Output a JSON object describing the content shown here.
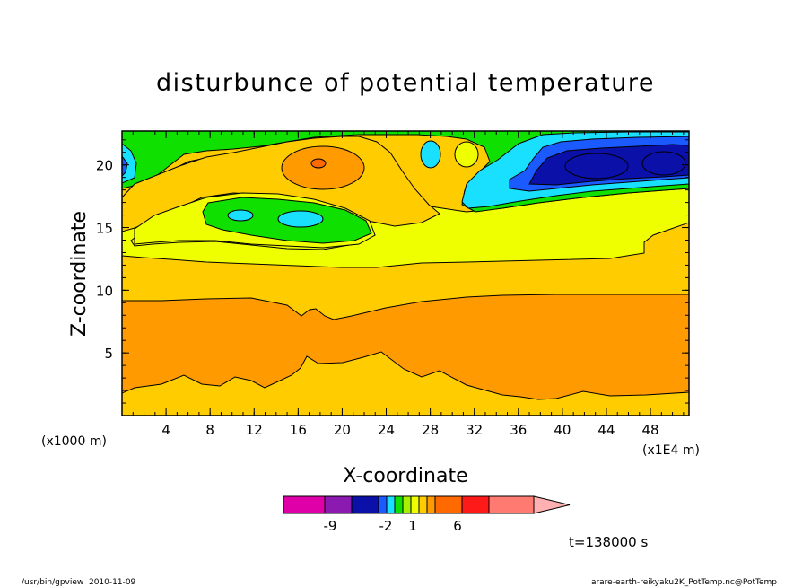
{
  "chart_data": {
    "type": "contour",
    "title": "disturbunce of potential temperature",
    "xlabel": "X-coordinate",
    "ylabel": "Z-coordinate",
    "x_unit_left": "(x1000 m)",
    "x_unit_right": "(x1E4 m)",
    "xlim": [
      0,
      51.5
    ],
    "ylim": [
      0,
      22.7
    ],
    "x_ticks": [
      "4",
      "8",
      "12",
      "16",
      "20",
      "24",
      "28",
      "32",
      "36",
      "40",
      "44",
      "48"
    ],
    "y_ticks": [
      "5",
      "10",
      "15",
      "20"
    ],
    "time_label": "t=138000 s",
    "colorbar": {
      "tick_labels": [
        "-9",
        "-2",
        "1",
        "6"
      ],
      "colors": [
        "#e000a8",
        "#8a1ab0",
        "#0a10a8",
        "#1a5aff",
        "#1ae0ff",
        "#10e000",
        "#a8f000",
        "#f0ff00",
        "#ffcc00",
        "#ff9a00",
        "#ff6a00",
        "#ff1a1a",
        "#ff7a70",
        "#ffb0b0"
      ]
    },
    "bands": [
      {
        "level": "orange",
        "color": "#ff9a00",
        "description": "broad positive band"
      },
      {
        "level": "gold",
        "color": "#ffcc00"
      },
      {
        "level": "yellow",
        "color": "#f0ff00"
      },
      {
        "level": "green",
        "color": "#10e000"
      },
      {
        "level": "cyan",
        "color": "#1ae0ff"
      },
      {
        "level": "blue",
        "color": "#0a10a8"
      }
    ]
  },
  "footer": {
    "left": "/usr/bin/gpview  2010-11-09",
    "right": "arare-earth-reikyaku2K_PotTemp.nc@PotTemp"
  }
}
